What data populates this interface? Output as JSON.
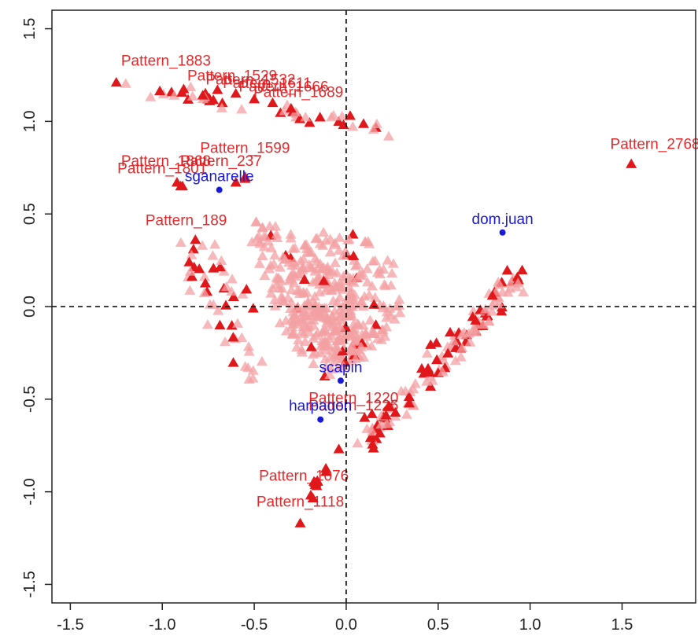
{
  "colors": {
    "pattern": "#e0181b",
    "pattern_faint": "#f3a0a3",
    "speaker": "#1a1ad6",
    "axis": "#222222"
  },
  "chart_data": {
    "type": "scatter",
    "title": "",
    "xlabel": "",
    "ylabel": "",
    "xlim": [
      -1.6,
      1.9
    ],
    "ylim": [
      -1.6,
      1.6
    ],
    "xticks": [
      "-1.5",
      "-1.0",
      "-0.5",
      "0.0",
      "0.5",
      "1.0",
      "1.5"
    ],
    "xtick_values": [
      -1.5,
      -1.0,
      -0.5,
      0.0,
      0.5,
      1.0,
      1.5
    ],
    "yticks": [
      "-1.5",
      "-1.0",
      "-0.5",
      "0.0",
      "0.5",
      "1.0",
      "1.5"
    ],
    "ytick_values": [
      -1.5,
      -1.0,
      -0.5,
      0.0,
      0.5,
      1.0,
      1.5
    ],
    "grid": false,
    "reference_lines": {
      "x": 0,
      "y": 0,
      "style": "dashed"
    },
    "speakers": [
      {
        "name": "sganarelle",
        "x": -0.69,
        "y": 0.63
      },
      {
        "name": "dom.juan",
        "x": 0.85,
        "y": 0.4
      },
      {
        "name": "scapin",
        "x": -0.03,
        "y": -0.4
      },
      {
        "name": "harpagon",
        "x": -0.14,
        "y": -0.61
      }
    ],
    "labeled_patterns": [
      {
        "label": "Pattern_1883",
        "x": -1.25,
        "y": 1.21,
        "lx": -0.98,
        "ly": 1.3
      },
      {
        "label": "Pattern_2768",
        "x": 1.55,
        "y": 0.77,
        "lx": 1.68,
        "ly": 0.85
      },
      {
        "label": "Pattern_1599",
        "x": -0.55,
        "y": 0.7,
        "lx": -0.55,
        "ly": 0.83
      },
      {
        "label": "Pattern_237",
        "x": -0.6,
        "y": 0.67,
        "lx": -0.68,
        "ly": 0.76
      },
      {
        "label": "Pattern_1868",
        "x": -0.92,
        "y": 0.67,
        "lx": -0.98,
        "ly": 0.76
      },
      {
        "label": "Pattern_1801",
        "x": -0.9,
        "y": 0.65,
        "lx": -1.0,
        "ly": 0.72
      },
      {
        "label": "Pattern_189",
        "x": -0.82,
        "y": 0.36,
        "lx": -0.87,
        "ly": 0.44
      },
      {
        "label": "Pattern_1076",
        "x": -0.17,
        "y": -0.95,
        "lx": -0.23,
        "ly": -0.94
      },
      {
        "label": "Pattern_1118",
        "x": -0.25,
        "y": -1.17,
        "lx": -0.25,
        "ly": -1.08
      },
      {
        "label": "Pattern_1220",
        "x": 0.14,
        "y": -0.58,
        "lx": 0.04,
        "ly": -0.52
      },
      {
        "label": "Pattern_1226",
        "x": 0.1,
        "y": -0.6,
        "lx": 0.04,
        "ly": -0.56
      },
      {
        "label": "Pattern_1529",
        "x": -0.7,
        "y": 1.17,
        "lx": -0.62,
        "ly": 1.22
      },
      {
        "label": "Pattern_1532",
        "x": -0.6,
        "y": 1.15,
        "lx": -0.52,
        "ly": 1.2
      },
      {
        "label": "Pattern_1611",
        "x": -0.5,
        "y": 1.12,
        "lx": -0.43,
        "ly": 1.18
      },
      {
        "label": "Pattern_1666",
        "x": -0.4,
        "y": 1.1,
        "lx": -0.34,
        "ly": 1.16
      },
      {
        "label": "Pattern_1689",
        "x": -0.3,
        "y": 1.07,
        "lx": -0.26,
        "ly": 1.13
      }
    ],
    "pattern_clouds": [
      {
        "shape": "segment",
        "from": [
          -1.2,
          1.2
        ],
        "to": [
          0.27,
          0.96
        ],
        "n": 46,
        "jitter": 0.03,
        "strong_share": 0.45
      },
      {
        "shape": "segment",
        "from": [
          -0.93,
          0.34
        ],
        "to": [
          -0.48,
          -0.38
        ],
        "n": 34,
        "jitter": 0.04,
        "strong_share": 0.35
      },
      {
        "shape": "segment",
        "from": [
          -0.77,
          0.36
        ],
        "to": [
          -0.55,
          0.0
        ],
        "n": 16,
        "jitter": 0.03,
        "strong_share": 0.35
      },
      {
        "shape": "segment",
        "from": [
          0.1,
          -0.75
        ],
        "to": [
          0.94,
          0.18
        ],
        "n": 140,
        "jitter": 0.03,
        "strong_share": 0.38
      },
      {
        "shape": "segment",
        "from": [
          -0.2,
          -1.03
        ],
        "to": [
          -0.1,
          -0.86
        ],
        "n": 10,
        "jitter": 0.015,
        "strong_share": 0.9
      },
      {
        "shape": "ellipse",
        "cx": -0.05,
        "cy": 0.05,
        "rx": 0.36,
        "ry": 0.36,
        "angle": -50,
        "n": 210,
        "strong_share": 0.04
      },
      {
        "shape": "ellipse",
        "cx": -0.2,
        "cy": 0.08,
        "rx": 0.48,
        "ry": 0.16,
        "angle": -52,
        "n": 150,
        "strong_share": 0.03
      },
      {
        "shape": "ellipse",
        "cx": -0.12,
        "cy": -0.08,
        "rx": 0.18,
        "ry": 0.3,
        "angle": 0,
        "n": 70,
        "strong_share": 0.05
      }
    ],
    "single_patterns": [
      {
        "x": -0.04,
        "y": -0.77
      },
      {
        "x": -0.55,
        "y": 0.69
      },
      {
        "x": -0.89,
        "y": 0.65
      },
      {
        "x": -0.78,
        "y": 1.14
      }
    ]
  }
}
